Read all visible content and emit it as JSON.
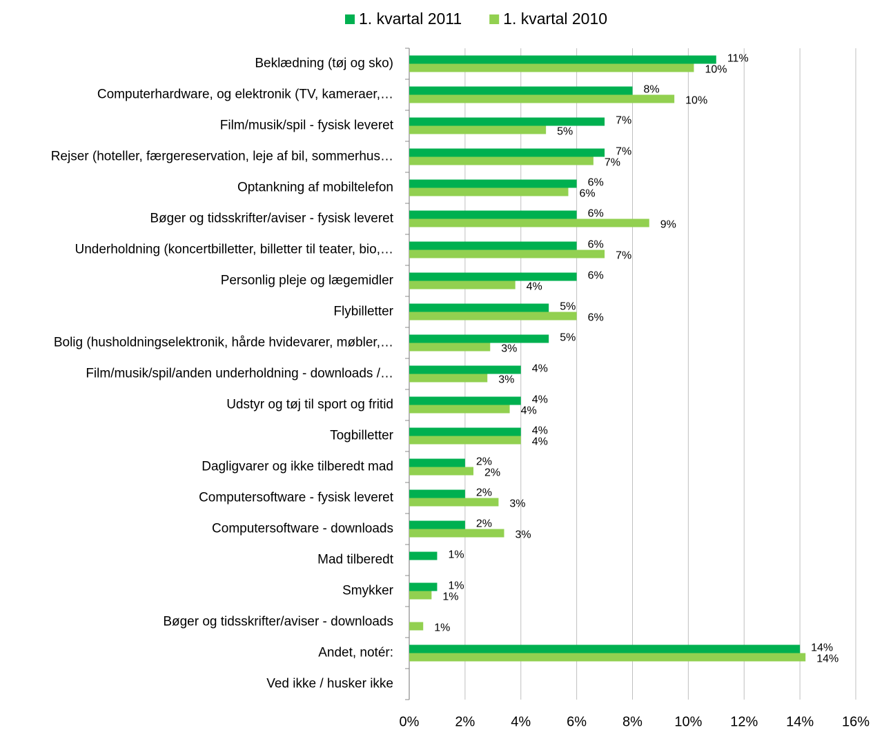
{
  "chart_data": {
    "type": "barh",
    "categories": [
      "Beklædning (tøj og sko)",
      "Computerhardware, og elektronik (TV, kameraer,…",
      "Film/musik/spil - fysisk leveret",
      "Rejser (hoteller, færgereservation, leje af bil, sommerhus…",
      "Optankning af mobiltelefon",
      "Bøger og tidsskrifter/aviser - fysisk leveret",
      "Underholdning (koncertbilletter, billetter til teater, bio,…",
      "Personlig pleje og lægemidler",
      "Flybilletter",
      "Bolig (husholdningselektronik, hårde hvidevarer, møbler,…",
      "Film/musik/spil/anden underholdning - downloads /…",
      "Udstyr og tøj til sport og fritid",
      "Togbilletter",
      "Dagligvarer og ikke tilberedt mad",
      "Computersoftware - fysisk leveret",
      "Computersoftware - downloads",
      "Mad tilberedt",
      "Smykker",
      "Bøger og tidsskrifter/aviser - downloads",
      "Andet, notér:",
      "Ved ikke / husker ikke"
    ],
    "series": [
      {
        "name": "1. kvartal 2011",
        "color": "#00b050",
        "values": [
          11.0,
          8.0,
          7.0,
          7.0,
          6.0,
          6.0,
          6.0,
          6.0,
          5.0,
          5.0,
          4.0,
          4.0,
          4.0,
          2.0,
          2.0,
          2.0,
          1.0,
          1.0,
          null,
          14.0,
          null
        ],
        "value_labels": [
          "11%",
          "8%",
          "7%",
          "7%",
          "6%",
          "6%",
          "6%",
          "6%",
          "5%",
          "5%",
          "4%",
          "4%",
          "4%",
          "2%",
          "2%",
          "2%",
          "1%",
          "1%",
          null,
          "14%",
          null
        ]
      },
      {
        "name": "1. kvartal 2010",
        "color": "#92d050",
        "values": [
          10.2,
          9.5,
          4.9,
          6.6,
          5.7,
          8.6,
          7.0,
          3.8,
          6.0,
          2.9,
          2.8,
          3.6,
          4.0,
          2.3,
          3.2,
          3.4,
          null,
          0.8,
          0.5,
          14.2,
          null
        ],
        "value_labels": [
          "10%",
          "10%",
          "5%",
          "7%",
          "6%",
          "9%",
          "7%",
          "4%",
          "6%",
          "3%",
          "3%",
          "4%",
          "4%",
          "2%",
          "3%",
          "3%",
          null,
          "1%",
          "1%",
          "14%",
          null
        ]
      }
    ],
    "xlim": [
      0,
      16
    ],
    "xticks": [
      {
        "value": 0,
        "label": "0%"
      },
      {
        "value": 2,
        "label": "2%"
      },
      {
        "value": 4,
        "label": "4%"
      },
      {
        "value": 6,
        "label": "6%"
      },
      {
        "value": 8,
        "label": "8%"
      },
      {
        "value": 10,
        "label": "10%"
      },
      {
        "value": 12,
        "label": "12%"
      },
      {
        "value": 14,
        "label": "14%"
      },
      {
        "value": 16,
        "label": "16%"
      }
    ],
    "grid": true,
    "legend": "top"
  }
}
